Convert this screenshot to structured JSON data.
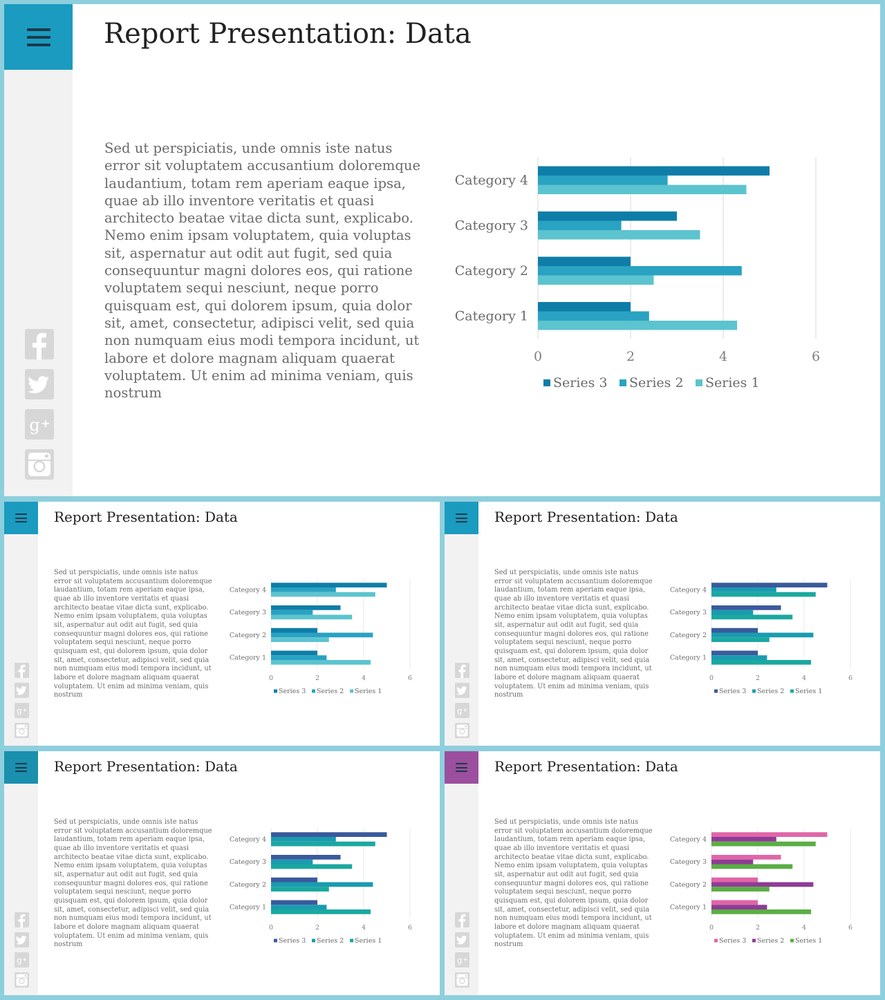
{
  "window": {
    "title": "Report Presentation: Data"
  },
  "sidebar": {
    "menu_icon": "hamburger-menu-icon",
    "social_icons": [
      "facebook-icon",
      "twitter-icon",
      "google-plus-icon",
      "instagram-icon"
    ]
  },
  "main": {
    "title": "Report Presentation: Data",
    "body": "Sed ut perspiciatis, unde omnis iste natus error sit voluptatem accusantium doloremque laudantium, totam rem aperiam eaque ipsa, quae ab illo inventore veritatis et quasi architecto beatae vitae dicta sunt, explicabo. Nemo enim ipsam voluptatem, quia voluptas sit, aspernatur aut odit aut fugit, sed quia consequuntur magni dolores eos, qui ratione voluptatem sequi nesciunt, neque porro quisquam est, qui dolorem ipsum, quia dolor sit, amet, consectetur, adipisci velit, sed quia non numquam eius modi tempora incidunt, ut labore et dolore magnam aliquam quaerat voluptatem. Ut enim ad minima veniam, quis nostrum"
  },
  "thumbnails": [
    {
      "title": "Report Presentation: Data",
      "accent": "#1a9bbf",
      "series_colors": {
        "Series 3": "#0e7ea8",
        "Series 2": "#2aa2c2",
        "Series 1": "#5cc4cf"
      }
    },
    {
      "title": "Report Presentation: Data",
      "accent": "#1a9bbf",
      "series_colors": {
        "Series 3": "#3a5a9c",
        "Series 2": "#1a9bb0",
        "Series 1": "#1aa8a0"
      }
    },
    {
      "title": "Report Presentation: Data",
      "accent": "#1a8fae",
      "series_colors": {
        "Series 3": "#3a5a9c",
        "Series 2": "#1a9bb0",
        "Series 1": "#1aa8a0"
      }
    },
    {
      "title": "Report Presentation: Data",
      "accent": "#9b4f9e",
      "series_colors": {
        "Series 3": "#e065a8",
        "Series 2": "#8e3c96",
        "Series 1": "#5aae45"
      }
    }
  ],
  "colors": {
    "main_accent": "#1a9bbf",
    "sidebar_bg": "#f2f2f2",
    "frame": "#8ecfdd"
  },
  "chart_data": {
    "type": "bar",
    "orientation": "horizontal",
    "categories": [
      "Category 1",
      "Category 2",
      "Category 3",
      "Category 4"
    ],
    "series": [
      {
        "name": "Series 3",
        "values": [
          2,
          2,
          3,
          5
        ],
        "color": "#0e7ea8"
      },
      {
        "name": "Series 2",
        "values": [
          2.4,
          4.4,
          1.8,
          2.8
        ],
        "color": "#2aa2c2"
      },
      {
        "name": "Series 1",
        "values": [
          4.3,
          2.5,
          3.5,
          4.5
        ],
        "color": "#5cc4cf"
      }
    ],
    "xlim": [
      0,
      6
    ],
    "xticks": [
      "0",
      "2",
      "4",
      "6"
    ],
    "grid": true,
    "legend_placement": "bottom"
  }
}
